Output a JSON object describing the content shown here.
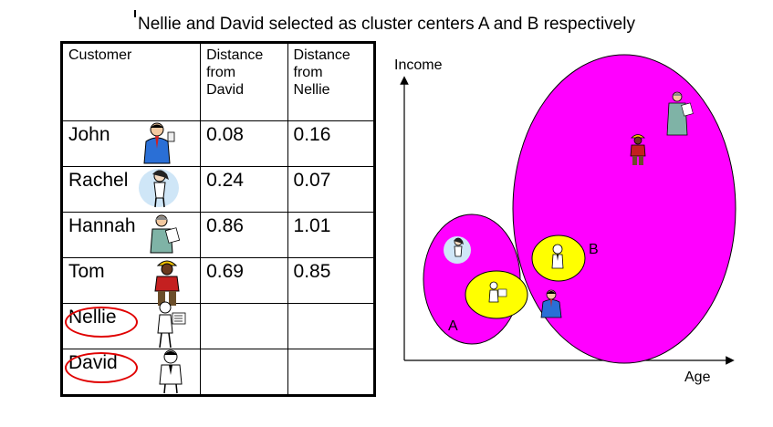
{
  "title": "Nellie and David selected as cluster centers A and B respectively",
  "table": {
    "headers": {
      "customer": "Customer",
      "dist_david": [
        "Distance",
        "from",
        "David"
      ],
      "dist_nellie": [
        "Distance",
        "from",
        "Nellie"
      ]
    },
    "rows": [
      {
        "name": "John",
        "from_david": "0.08",
        "from_nellie": "0.16",
        "icon": "businessman-icon"
      },
      {
        "name": "Rachel",
        "from_david": "0.24",
        "from_nellie": "0.07",
        "icon": "woman-icon"
      },
      {
        "name": "Hannah",
        "from_david": "0.86",
        "from_nellie": "1.01",
        "icon": "woman-clipboard-icon"
      },
      {
        "name": "Tom",
        "from_david": "0.69",
        "from_nellie": "0.85",
        "icon": "construction-worker-icon"
      },
      {
        "name": "Nellie",
        "from_david": "",
        "from_nellie": "",
        "icon": "woman-checklist-icon",
        "circled": true
      },
      {
        "name": "David",
        "from_david": "",
        "from_nellie": "",
        "icon": "man-icon",
        "circled": true
      }
    ]
  },
  "plot": {
    "y_label": "Income",
    "x_label": "Age",
    "cluster_a_label": "A",
    "cluster_b_label": "B",
    "cluster_color": "#ff00ff",
    "center_color": "#ffff00",
    "circle_color": "#e00000"
  }
}
